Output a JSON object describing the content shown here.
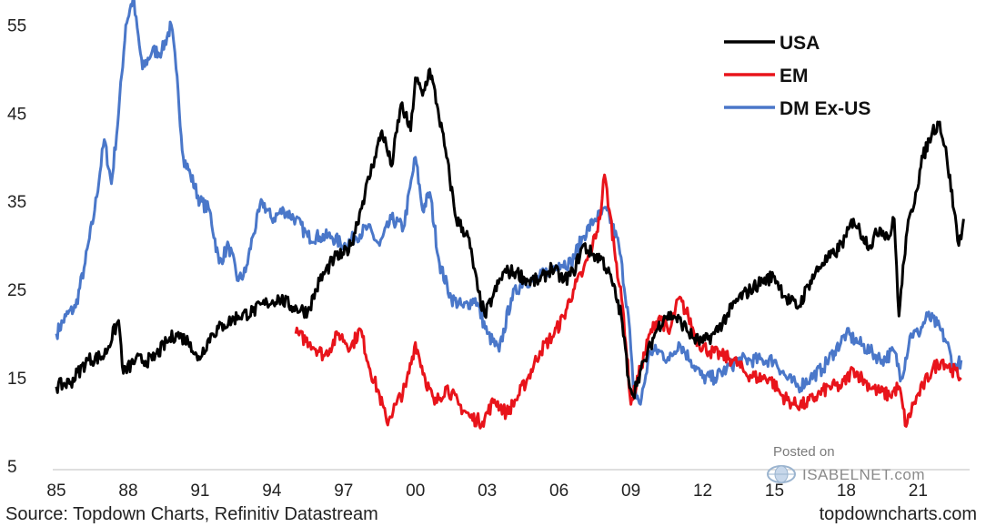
{
  "chart_data": {
    "type": "line",
    "title": "",
    "xlabel": "",
    "ylabel": "",
    "ylim": [
      5,
      57
    ],
    "xlim": [
      1985,
      2023
    ],
    "y_ticks": [
      5,
      15,
      25,
      35,
      45,
      55
    ],
    "x_ticks": [
      {
        "value": 1985,
        "label": "85"
      },
      {
        "value": 1988,
        "label": "88"
      },
      {
        "value": 1991,
        "label": "91"
      },
      {
        "value": 1994,
        "label": "94"
      },
      {
        "value": 1997,
        "label": "97"
      },
      {
        "value": 2000,
        "label": "00"
      },
      {
        "value": 2003,
        "label": "03"
      },
      {
        "value": 2006,
        "label": "06"
      },
      {
        "value": 2009,
        "label": "09"
      },
      {
        "value": 2012,
        "label": "12"
      },
      {
        "value": 2015,
        "label": "15"
      },
      {
        "value": 2018,
        "label": "18"
      },
      {
        "value": 2021,
        "label": "21"
      }
    ],
    "grid": false,
    "legend_position": "top-right",
    "series": [
      {
        "name": "USA",
        "color": "#000000",
        "x": [
          1985.0,
          1985.6,
          1986.3,
          1987.0,
          1987.6,
          1987.8,
          1988.3,
          1989.0,
          1989.6,
          1990.0,
          1990.6,
          1990.9,
          1991.5,
          1992.0,
          1992.6,
          1993.2,
          1993.8,
          1994.3,
          1994.9,
          1995.5,
          1996.0,
          1996.6,
          1997.0,
          1997.3,
          1997.8,
          1998.3,
          1998.6,
          1999.0,
          1999.4,
          1999.8,
          2000.0,
          2000.3,
          2000.6,
          2000.9,
          2001.3,
          2001.7,
          2002.2,
          2002.6,
          2002.9,
          2003.2,
          2003.7,
          2004.2,
          2004.7,
          2005.2,
          2005.7,
          2006.2,
          2006.6,
          2007.0,
          2007.4,
          2007.8,
          2008.2,
          2008.6,
          2008.9,
          2009.1,
          2009.3,
          2009.6,
          2010.0,
          2010.4,
          2010.8,
          2011.2,
          2011.6,
          2012.0,
          2012.5,
          2013.0,
          2013.5,
          2014.0,
          2014.5,
          2015.0,
          2015.5,
          2016.0,
          2016.5,
          2017.0,
          2017.5,
          2018.0,
          2018.3,
          2018.7,
          2019.0,
          2019.4,
          2019.8,
          2020.0,
          2020.2,
          2020.5,
          2020.9,
          2021.2,
          2021.6,
          2021.9,
          2022.2,
          2022.5,
          2022.7,
          2022.9
        ],
        "values": [
          14,
          14.5,
          17,
          17.5,
          21.5,
          15.5,
          17,
          17,
          19,
          20,
          19,
          17,
          20,
          21,
          22,
          22.5,
          23.5,
          24,
          23,
          22.5,
          26,
          28.5,
          29,
          30,
          35,
          40,
          43,
          39,
          46,
          43,
          49,
          47,
          50,
          46,
          40,
          33,
          31,
          25,
          22,
          24,
          27,
          27,
          26,
          26,
          27.5,
          26,
          27,
          30,
          29,
          28.5,
          26,
          22,
          15,
          13,
          15,
          17,
          20,
          22,
          22,
          21,
          19.5,
          19,
          20,
          22,
          24,
          25,
          26,
          26.5,
          24,
          23,
          26,
          28,
          29,
          31,
          33,
          31,
          30,
          32,
          31,
          33,
          22,
          31,
          36,
          40,
          43,
          44,
          40,
          34,
          30,
          33
        ]
      },
      {
        "name": "EM",
        "color": "#e8141b",
        "x": [
          1995.0,
          1995.6,
          1996.2,
          1996.8,
          1997.3,
          1997.7,
          1998.1,
          1998.5,
          1998.8,
          1999.2,
          1999.6,
          2000.0,
          2000.4,
          2000.8,
          2001.3,
          2001.8,
          2002.3,
          2002.8,
          2003.3,
          2003.8,
          2004.2,
          2004.7,
          2005.2,
          2005.8,
          2006.2,
          2006.6,
          2007.0,
          2007.4,
          2007.7,
          2007.9,
          2008.1,
          2008.4,
          2008.7,
          2009.0,
          2009.4,
          2009.8,
          2010.2,
          2010.6,
          2011.0,
          2011.4,
          2011.8,
          2012.3,
          2012.8,
          2013.3,
          2013.8,
          2014.3,
          2014.8,
          2015.3,
          2015.8,
          2016.3,
          2016.8,
          2017.3,
          2017.8,
          2018.3,
          2018.8,
          2019.3,
          2019.8,
          2020.2,
          2020.5,
          2020.8,
          2021.2,
          2021.6,
          2022.0,
          2022.4,
          2022.8
        ],
        "values": [
          20,
          19,
          17.5,
          20,
          18.5,
          20.5,
          16,
          13,
          10,
          12,
          14,
          19,
          15,
          12,
          14,
          12,
          10.5,
          10,
          12.5,
          11,
          12.5,
          15,
          18,
          20,
          22,
          25,
          27,
          30,
          33,
          38,
          34,
          28,
          22,
          12,
          16,
          20,
          22,
          20,
          24,
          22,
          19,
          18,
          17.5,
          17,
          15.5,
          15,
          15,
          13,
          12,
          12,
          13,
          14,
          14,
          16,
          14.5,
          13.5,
          13,
          14,
          9.5,
          12,
          14,
          16,
          17,
          16,
          15
        ]
      },
      {
        "name": "DM Ex-US",
        "color": "#4a77c9",
        "x": [
          1985.0,
          1985.4,
          1985.8,
          1986.2,
          1986.6,
          1987.0,
          1987.3,
          1987.6,
          1987.9,
          1988.2,
          1988.6,
          1989.0,
          1989.4,
          1989.8,
          1990.0,
          1990.3,
          1990.6,
          1991.0,
          1991.4,
          1991.8,
          1992.2,
          1992.6,
          1992.9,
          1993.2,
          1993.6,
          1994.0,
          1994.5,
          1995.0,
          1995.5,
          1996.0,
          1996.5,
          1997.0,
          1997.5,
          1998.0,
          1998.5,
          1999.0,
          1999.5,
          2000.0,
          2000.3,
          2000.6,
          2001.0,
          2001.5,
          2002.0,
          2002.5,
          2003.0,
          2003.5,
          2004.0,
          2004.5,
          2005.0,
          2005.5,
          2006.0,
          2006.5,
          2007.0,
          2007.5,
          2008.0,
          2008.5,
          2008.9,
          2009.1,
          2009.4,
          2009.8,
          2010.2,
          2010.6,
          2011.0,
          2011.5,
          2012.0,
          2012.5,
          2013.0,
          2013.5,
          2014.0,
          2014.5,
          2015.0,
          2015.5,
          2016.0,
          2016.5,
          2017.0,
          2017.5,
          2018.0,
          2018.5,
          2019.0,
          2019.5,
          2020.0,
          2020.3,
          2020.7,
          2021.0,
          2021.4,
          2021.8,
          2022.2,
          2022.5,
          2022.8
        ],
        "values": [
          20,
          22,
          23,
          28,
          34,
          42,
          37,
          45,
          55,
          58,
          50,
          52,
          52,
          55,
          50,
          40,
          38,
          35,
          34,
          28,
          30,
          26,
          27,
          31,
          35,
          33,
          34,
          33,
          31,
          31,
          31,
          30,
          31,
          32,
          30,
          33,
          32,
          40,
          34,
          36,
          28,
          24,
          23,
          24,
          20,
          18,
          24,
          26,
          26,
          27,
          28,
          28,
          31,
          33,
          34,
          30,
          22,
          14,
          12,
          18,
          18,
          17,
          19,
          17,
          15,
          15,
          16,
          17,
          17,
          17,
          17,
          15,
          14,
          15,
          16,
          18,
          20,
          19,
          18,
          17,
          18,
          15,
          20,
          20,
          22,
          21,
          19,
          16,
          17
        ]
      }
    ]
  },
  "footer": {
    "source": "Source: Topdown Charts, Refinitiv Datastream",
    "brand": "topdowncharts.com"
  },
  "watermark": {
    "posted_on": "Posted on",
    "site": "ISABELNET.com"
  }
}
